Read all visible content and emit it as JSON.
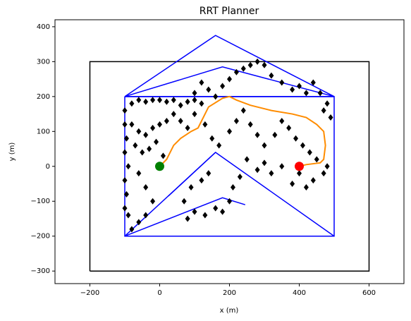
{
  "chart_data": {
    "type": "scatter",
    "title": "RRT Planner",
    "x_label": "x (m)",
    "y_label": "y (m)",
    "xlim": [
      -300,
      700
    ],
    "ylim": [
      -336,
      420
    ],
    "xticks": [
      {
        "value": -200,
        "label": "−200"
      },
      0,
      200,
      400,
      600
    ],
    "yticks": [
      {
        "value": -300,
        "label": "−300"
      },
      {
        "value": -200,
        "label": "−200"
      },
      {
        "value": -100,
        "label": "−100"
      },
      0,
      100,
      200,
      300,
      400
    ],
    "polygons": [
      {
        "color": "#000000",
        "x": [
          -200,
          600,
          600,
          -200,
          -200
        ],
        "y": [
          -300,
          -300,
          300,
          300,
          -300
        ]
      },
      {
        "color": "#0000ff",
        "x": [
          -100,
          160,
          500,
          -100
        ],
        "y": [
          200,
          375,
          200,
          200
        ]
      },
      {
        "color": "#0000ff",
        "x": [
          -100,
          180,
          500,
          -100
        ],
        "y": [
          200,
          285,
          200,
          200
        ]
      },
      {
        "color": "#0000ff",
        "x": [
          -100,
          500,
          500,
          -100,
          -100
        ],
        "y": [
          200,
          200,
          -200,
          -200,
          200
        ]
      },
      {
        "color": "#0000ff",
        "x": [
          -100,
          160,
          500
        ],
        "y": [
          -200,
          40,
          -200
        ]
      },
      {
        "color": "#0000ff",
        "x": [
          -100,
          180,
          245
        ],
        "y": [
          -200,
          -90,
          -110
        ]
      },
      {
        "color": "#0000ff",
        "x": [
          25,
          160
        ],
        "y": [
          -85,
          40
        ]
      }
    ],
    "series": [
      {
        "mode": "marker",
        "marker": "diamond",
        "color": "#000000",
        "x": [
          -100,
          -100,
          -95,
          -100,
          -90,
          -100,
          -95,
          -100,
          -90,
          -80,
          -60,
          -40,
          -20,
          0,
          20,
          40,
          60,
          80,
          100,
          120,
          -80,
          -60,
          -40,
          -20,
          0,
          20,
          40,
          -70,
          -50,
          -30,
          -10,
          10,
          -60,
          -40,
          -20,
          -40,
          -60,
          -80,
          60,
          80,
          100,
          130,
          150,
          170,
          200,
          220,
          240,
          260,
          280,
          300,
          330,
          350,
          370,
          390,
          410,
          430,
          450,
          480,
          470,
          440,
          420,
          400,
          380,
          350,
          320,
          300,
          280,
          250,
          230,
          210,
          200,
          180,
          160,
          130,
          100,
          80,
          70,
          90,
          120,
          140,
          180,
          200,
          220,
          240,
          260,
          280,
          300,
          320,
          350,
          380,
          400,
          420,
          440,
          460,
          480,
          490,
          470,
          160,
          140,
          120,
          100
        ],
        "y": [
          160,
          120,
          80,
          40,
          0,
          -40,
          -80,
          -120,
          -140,
          180,
          190,
          185,
          190,
          190,
          185,
          190,
          175,
          185,
          190,
          180,
          120,
          100,
          90,
          110,
          120,
          130,
          150,
          60,
          40,
          50,
          70,
          30,
          -20,
          -60,
          -100,
          -140,
          -160,
          -180,
          130,
          110,
          150,
          120,
          80,
          60,
          100,
          130,
          160,
          120,
          90,
          60,
          90,
          130,
          110,
          80,
          60,
          40,
          20,
          0,
          -20,
          -40,
          -60,
          -20,
          -50,
          0,
          -20,
          10,
          -10,
          20,
          -30,
          -60,
          -100,
          -130,
          -120,
          -140,
          -130,
          -150,
          -100,
          -60,
          -40,
          -20,
          230,
          250,
          270,
          280,
          290,
          300,
          290,
          260,
          240,
          220,
          230,
          210,
          240,
          210,
          180,
          140,
          160,
          200,
          220,
          240,
          210
        ]
      },
      {
        "mode": "line",
        "color": "#ff8c00",
        "x": [
          0,
          20,
          40,
          60,
          90,
          110,
          130,
          140,
          180,
          200,
          220,
          260,
          320,
          380,
          420,
          450,
          470,
          475,
          470,
          460,
          420,
          400
        ],
        "y": [
          0,
          20,
          60,
          80,
          100,
          110,
          150,
          170,
          195,
          200,
          190,
          175,
          160,
          150,
          140,
          120,
          100,
          60,
          20,
          10,
          5,
          0
        ]
      },
      {
        "mode": "marker",
        "marker": "circle",
        "color": "#008000",
        "x": [
          0
        ],
        "y": [
          0
        ]
      },
      {
        "mode": "marker",
        "marker": "circle",
        "color": "#ff0000",
        "x": [
          400
        ],
        "y": [
          0
        ]
      }
    ]
  }
}
